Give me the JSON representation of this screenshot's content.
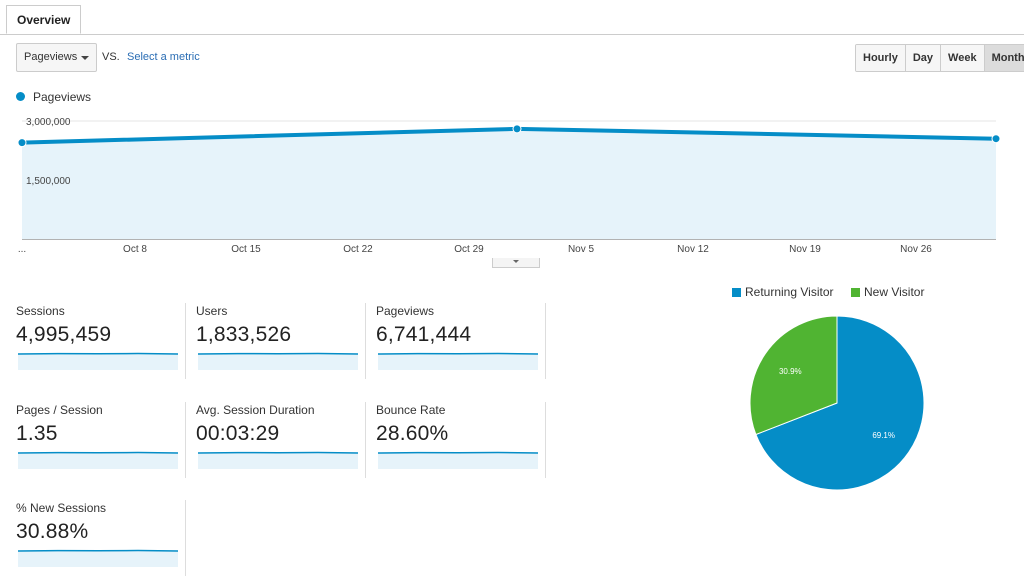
{
  "tabs": [
    {
      "label": "Overview"
    }
  ],
  "controls": {
    "metric": "Pageviews",
    "vs": "VS.",
    "select_metric": "Select a metric",
    "granularity": [
      "Hourly",
      "Day",
      "Week",
      "Month"
    ],
    "granularity_active": "Month"
  },
  "chart_data": [
    {
      "type": "area",
      "series": [
        {
          "name": "Pageviews",
          "color": "#058dc7",
          "values": [
            2450000,
            2800000,
            2550000
          ]
        }
      ],
      "x": [
        "Oct 1",
        "Nov 1",
        "Dec 1"
      ],
      "x_ticks": [
        "...",
        "Oct 8",
        "Oct 15",
        "Oct 22",
        "Oct 29",
        "Nov 5",
        "Nov 12",
        "Nov 19",
        "Nov 26"
      ],
      "y_ticks": [
        "3,000,000",
        "1,500,000"
      ],
      "ylim": [
        0,
        3000000
      ],
      "grid": true,
      "legend": "top-left"
    },
    {
      "type": "pie",
      "categories": [
        "Returning Visitor",
        "New Visitor"
      ],
      "values": [
        69.1,
        30.9
      ],
      "colors": [
        "#058dc7",
        "#50b432"
      ],
      "labels": [
        "69.1%",
        "30.9%"
      ],
      "legend": "top"
    }
  ],
  "metrics": [
    {
      "label": "Sessions",
      "value": "4,995,459"
    },
    {
      "label": "Users",
      "value": "1,833,526"
    },
    {
      "label": "Pageviews",
      "value": "6,741,444"
    },
    {
      "label": "Pages / Session",
      "value": "1.35"
    },
    {
      "label": "Avg. Session Duration",
      "value": "00:03:29"
    },
    {
      "label": "Bounce Rate",
      "value": "28.60%"
    },
    {
      "label": "% New Sessions",
      "value": "30.88%"
    }
  ]
}
